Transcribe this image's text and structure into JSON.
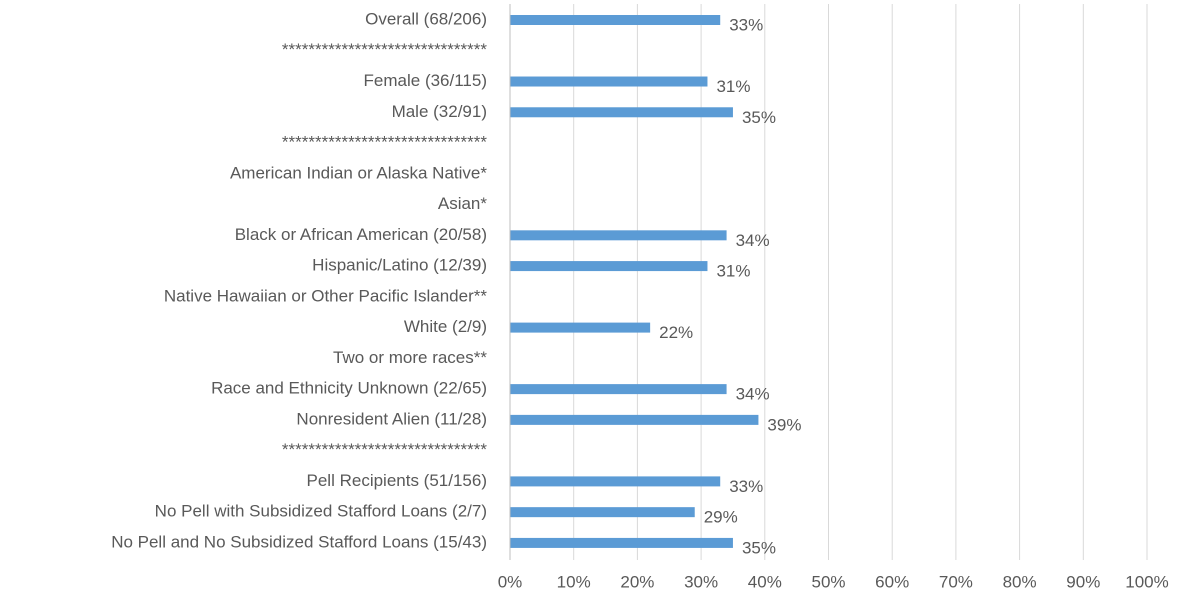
{
  "chart_data": {
    "type": "barh",
    "categories": [
      "Overall (68/206)",
      "*******************************",
      "Female (36/115)",
      "Male (32/91)",
      "*******************************",
      "American Indian or Alaska Native*",
      "Asian*",
      "Black or African American (20/58)",
      "Hispanic/Latino (12/39)",
      "Native Hawaiian or Other Pacific Islander**",
      "White (2/9)",
      "Two or more races**",
      "Race and Ethnicity Unknown (22/65)",
      "Nonresident Alien (11/28)",
      "*******************************",
      "Pell Recipients (51/156)",
      "No Pell with Subsidized Stafford Loans (2/7)",
      "No Pell and No Subsidized Stafford Loans (15/43)"
    ],
    "values": [
      33,
      null,
      31,
      35,
      null,
      null,
      null,
      34,
      31,
      null,
      22,
      null,
      34,
      39,
      null,
      33,
      29,
      35
    ],
    "value_labels": [
      "33%",
      null,
      "31%",
      "35%",
      null,
      null,
      null,
      "34%",
      "31%",
      null,
      "22%",
      null,
      "34%",
      "39%",
      null,
      "33%",
      "29%",
      "35%"
    ],
    "color": "#5b9bd5",
    "xlim": [
      0,
      100
    ],
    "xticks": [
      {
        "value": 0,
        "label": "0%"
      },
      {
        "value": 10,
        "label": "10%"
      },
      {
        "value": 20,
        "label": "20%"
      },
      {
        "value": 30,
        "label": "30%"
      },
      {
        "value": 40,
        "label": "40%"
      },
      {
        "value": 50,
        "label": "50%"
      },
      {
        "value": 60,
        "label": "60%"
      },
      {
        "value": 70,
        "label": "70%"
      },
      {
        "value": 80,
        "label": "80%"
      },
      {
        "value": 90,
        "label": "90%"
      },
      {
        "value": 100,
        "label": "100%"
      }
    ],
    "grid": true
  }
}
